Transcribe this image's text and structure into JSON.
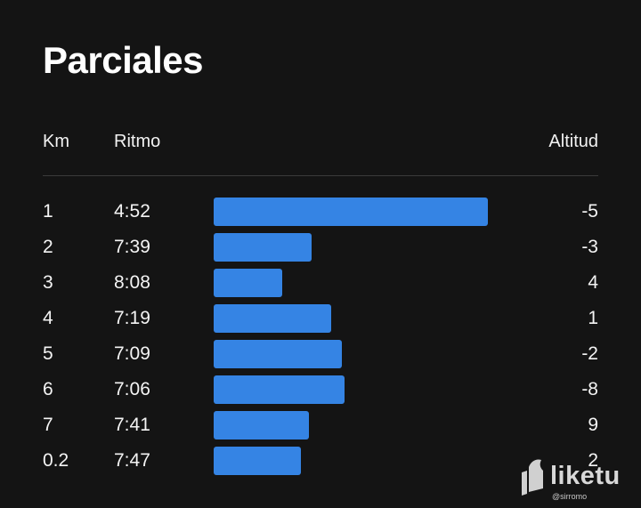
{
  "page": {
    "title": "Parciales"
  },
  "table": {
    "headers": {
      "km": "Km",
      "pace": "Ritmo",
      "altitude": "Altitud"
    },
    "rows": [
      {
        "km": "1",
        "pace": "4:52",
        "altitude": "-5",
        "bar_fraction": 1.0
      },
      {
        "km": "2",
        "pace": "7:39",
        "altitude": "-3",
        "bar_fraction": 0.357
      },
      {
        "km": "3",
        "pace": "8:08",
        "altitude": "4",
        "bar_fraction": 0.25
      },
      {
        "km": "4",
        "pace": "7:19",
        "altitude": "1",
        "bar_fraction": 0.429
      },
      {
        "km": "5",
        "pace": "7:09",
        "altitude": "-2",
        "bar_fraction": 0.468
      },
      {
        "km": "6",
        "pace": "7:06",
        "altitude": "-8",
        "bar_fraction": 0.477
      },
      {
        "km": "7",
        "pace": "7:41",
        "altitude": "9",
        "bar_fraction": 0.347
      },
      {
        "km": "0.2",
        "pace": "7:47",
        "altitude": "2",
        "bar_fraction": 0.318
      }
    ]
  },
  "colors": {
    "background": "#141414",
    "bar": "#3584e4",
    "divider": "#3a3a3a"
  },
  "watermark": {
    "brand": "liketu",
    "handle": "@sirromo",
    "icon": "liketu-logo-icon"
  }
}
